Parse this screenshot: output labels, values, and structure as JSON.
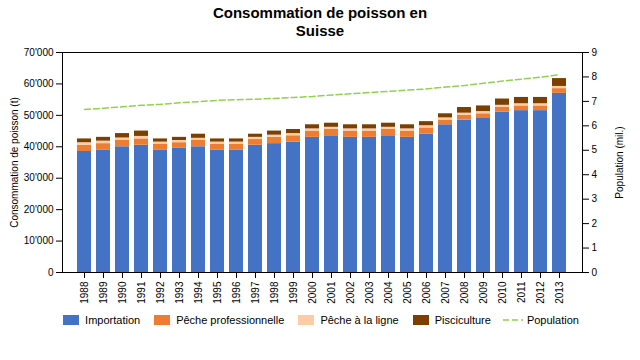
{
  "chart_data": {
    "type": "bar",
    "title": "Consommation de poisson en\nSuisse",
    "categories": [
      1988,
      1989,
      1990,
      1991,
      1992,
      1993,
      1994,
      1995,
      1996,
      1997,
      1998,
      1999,
      2000,
      2001,
      2002,
      2003,
      2004,
      2005,
      2006,
      2007,
      2008,
      2009,
      2010,
      2011,
      2012,
      2013
    ],
    "stacked": true,
    "series": [
      {
        "name": "Importation",
        "color": "#4472C4",
        "values": [
          38500,
          39000,
          40000,
          40500,
          39000,
          39500,
          40000,
          39000,
          39000,
          40500,
          41000,
          41500,
          43000,
          43500,
          43000,
          43000,
          43500,
          43000,
          44000,
          47000,
          48500,
          49000,
          51000,
          51500,
          51500,
          57000
        ]
      },
      {
        "name": "Pêche professionnelle",
        "color": "#ED7D31",
        "values": [
          2000,
          2000,
          2000,
          2000,
          1800,
          1800,
          2000,
          1800,
          1800,
          1800,
          2000,
          2000,
          2000,
          2000,
          2000,
          2000,
          2000,
          2000,
          2000,
          1500,
          1500,
          1500,
          1500,
          1500,
          1500,
          1500
        ]
      },
      {
        "name": "Pêche à la ligne",
        "color": "#FFCBA4",
        "values": [
          800,
          800,
          800,
          800,
          700,
          700,
          700,
          700,
          700,
          700,
          700,
          700,
          700,
          700,
          700,
          700,
          700,
          700,
          700,
          700,
          700,
          700,
          700,
          700,
          700,
          700
        ]
      },
      {
        "name": "Pisciculture",
        "color": "#7B3F00",
        "values": [
          1200,
          1200,
          1400,
          1700,
          1000,
          1000,
          1300,
          1000,
          1000,
          1000,
          1300,
          1300,
          1300,
          1300,
          1300,
          1300,
          1300,
          1300,
          1300,
          1300,
          1800,
          1800,
          2000,
          2000,
          2000,
          2500
        ]
      },
      {
        "name": "Population",
        "color": "#92D050",
        "type": "line",
        "line_style": "dashed",
        "axis": "y2",
        "values": [
          6.67,
          6.72,
          6.78,
          6.84,
          6.88,
          6.94,
          6.99,
          7.04,
          7.07,
          7.09,
          7.12,
          7.16,
          7.2,
          7.26,
          7.31,
          7.36,
          7.41,
          7.46,
          7.51,
          7.59,
          7.65,
          7.74,
          7.83,
          7.91,
          7.99,
          8.09
        ]
      }
    ],
    "ylabel": "Consommation de poisson (t)",
    "y2label": "Population (mil.)",
    "ylim": [
      0,
      70000
    ],
    "yticks": [
      0,
      {
        "value": 10000,
        "label": "10'000"
      },
      {
        "value": 20000,
        "label": "20'000"
      },
      {
        "value": 30000,
        "label": "30'000"
      },
      {
        "value": 40000,
        "label": "40'000"
      },
      {
        "value": 50000,
        "label": "50'000"
      },
      {
        "value": 60000,
        "label": "60'000"
      },
      {
        "value": 70000,
        "label": "70'000"
      }
    ],
    "y2lim": [
      0,
      9
    ],
    "y2ticks": [
      0,
      1,
      2,
      3,
      4,
      5,
      6,
      7,
      8,
      9
    ],
    "grid": false,
    "legend": "bottom"
  }
}
